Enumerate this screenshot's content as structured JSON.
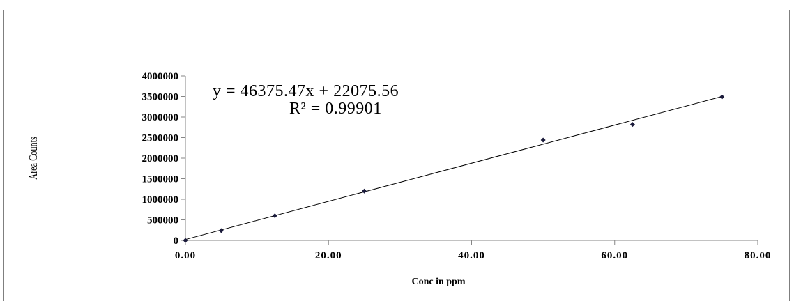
{
  "chart_data": {
    "type": "scatter",
    "title": "",
    "xlabel": "Conc in ppm",
    "ylabel": "Area Counts",
    "xlim": [
      0,
      80
    ],
    "ylim": [
      0,
      4000000
    ],
    "x_ticks": [
      "0.00",
      "20.00",
      "40.00",
      "60.00",
      "80.00"
    ],
    "y_ticks": [
      "0",
      "500000",
      "1000000",
      "1500000",
      "2000000",
      "2500000",
      "3000000",
      "3500000",
      "4000000"
    ],
    "x_tick_values": [
      0,
      20,
      40,
      60,
      80
    ],
    "y_tick_values": [
      0,
      500000,
      1000000,
      1500000,
      2000000,
      2500000,
      3000000,
      3500000,
      4000000
    ],
    "grid": false,
    "legend": "none",
    "points": [
      {
        "x": 0,
        "y": 0
      },
      {
        "x": 5,
        "y": 240000
      },
      {
        "x": 12.5,
        "y": 600000
      },
      {
        "x": 25,
        "y": 1200000
      },
      {
        "x": 50,
        "y": 2440000
      },
      {
        "x": 62.5,
        "y": 2820000
      },
      {
        "x": 75,
        "y": 3490000
      }
    ],
    "trendline": {
      "slope": 46375.47,
      "intercept": 22075.56,
      "x_range": [
        0,
        75
      ],
      "equation_label": "y = 46375.47x + 22075.56",
      "r2_label": "R² = 0.99901"
    },
    "colors": {
      "marker": "#1a1a3a",
      "line": "#000000"
    }
  }
}
